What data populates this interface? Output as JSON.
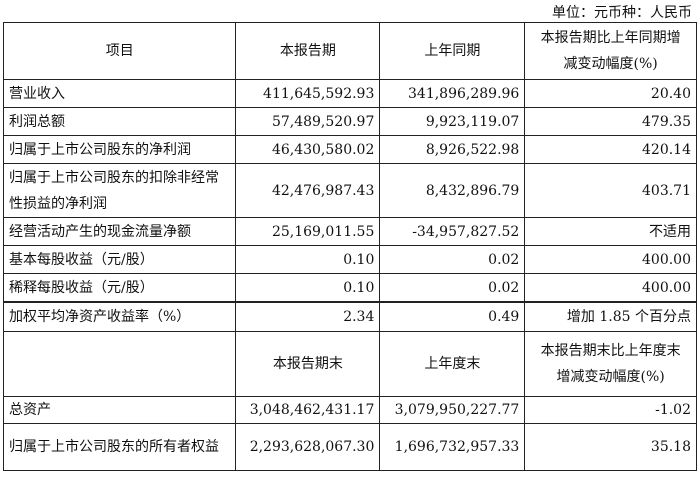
{
  "unit_label": "单位：元币种：人民币",
  "header1": [
    "项目",
    "本报告期",
    "上年同期",
    "本报告期比上年同期增减变动幅度(%)"
  ],
  "rows1": [
    [
      "营业收入",
      "411,645,592.93",
      "341,896,289.96",
      "20.40"
    ],
    [
      "利润总额",
      "57,489,520.97",
      "9,923,119.07",
      "479.35"
    ],
    [
      "归属于上市公司股东的净利润",
      "46,430,580.02",
      "8,926,522.98",
      "420.14"
    ],
    [
      "归属于上市公司股东的扣除非经常性损益的净利润",
      "42,476,987.43",
      "8,432,896.79",
      "403.71"
    ],
    [
      "经营活动产生的现金流量净额",
      "25,169,011.55",
      "-34,957,827.52",
      "不适用"
    ],
    [
      "基本每股收益（元/股）",
      "0.10",
      "0.02",
      "400.00"
    ],
    [
      "稀释每股收益（元/股）",
      "0.10",
      "0.02",
      "400.00"
    ],
    [
      "加权平均净资产收益率（%）",
      "2.34",
      "0.49",
      "增加 1.85 个百分点"
    ]
  ],
  "header2": [
    "",
    "本报告期末",
    "上年度末",
    "本报告期末比上年度末增减变动幅度(%)"
  ],
  "rows2": [
    [
      "总资产",
      "3,048,462,431.17",
      "3,079,950,227.77",
      "-1.02"
    ],
    [
      "归属于上市公司股东的所有者权益",
      "2,293,628,067.30",
      "1,696,732,957.33",
      "35.18"
    ]
  ]
}
